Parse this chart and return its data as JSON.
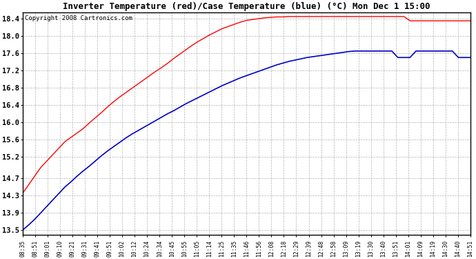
{
  "title": "Inverter Temperature (red)/Case Temperature (blue) (°C) Mon Dec 1 15:00",
  "copyright": "Copyright 2008 Cartronics.com",
  "background_color": "#ffffff",
  "plot_bg_color": "#ffffff",
  "grid_color": "#aaaaaa",
  "yticks": [
    13.5,
    13.9,
    14.3,
    14.7,
    15.2,
    15.6,
    16.0,
    16.4,
    16.8,
    17.2,
    17.6,
    18.0,
    18.4
  ],
  "ylim": [
    13.4,
    18.55
  ],
  "red_color": "#ff0000",
  "blue_color": "#0000cc",
  "xtick_labels": [
    "08:35",
    "08:51",
    "09:01",
    "09:10",
    "09:21",
    "09:31",
    "09:41",
    "09:51",
    "10:02",
    "10:12",
    "10:24",
    "10:34",
    "10:45",
    "10:55",
    "11:05",
    "11:14",
    "11:25",
    "11:35",
    "11:46",
    "11:56",
    "12:08",
    "12:18",
    "12:29",
    "12:39",
    "12:48",
    "12:58",
    "13:09",
    "13:19",
    "13:30",
    "13:40",
    "13:51",
    "14:01",
    "14:09",
    "14:19",
    "14:30",
    "14:40",
    "14:51"
  ],
  "red_values": [
    14.35,
    14.55,
    14.75,
    14.95,
    15.1,
    15.25,
    15.4,
    15.55,
    15.65,
    15.75,
    15.85,
    15.98,
    16.1,
    16.22,
    16.35,
    16.47,
    16.58,
    16.68,
    16.78,
    16.88,
    16.98,
    17.08,
    17.18,
    17.27,
    17.37,
    17.48,
    17.58,
    17.68,
    17.78,
    17.87,
    17.95,
    18.03,
    18.1,
    18.17,
    18.22,
    18.27,
    18.32,
    18.36,
    18.38,
    18.4,
    18.42,
    18.43,
    18.44,
    18.44,
    18.45,
    18.45,
    18.45,
    18.45,
    18.45,
    18.45,
    18.45,
    18.45,
    18.45,
    18.45,
    18.45,
    18.45,
    18.45,
    18.45,
    18.45,
    18.45,
    18.45,
    18.45,
    18.45,
    18.45,
    18.35,
    18.35,
    18.35,
    18.35,
    18.35,
    18.35,
    18.35,
    18.35,
    18.35,
    18.35,
    18.35
  ],
  "blue_values": [
    13.5,
    13.62,
    13.75,
    13.9,
    14.05,
    14.2,
    14.35,
    14.5,
    14.62,
    14.75,
    14.87,
    14.98,
    15.1,
    15.22,
    15.33,
    15.43,
    15.53,
    15.63,
    15.72,
    15.8,
    15.88,
    15.96,
    16.04,
    16.12,
    16.2,
    16.27,
    16.35,
    16.43,
    16.5,
    16.57,
    16.64,
    16.71,
    16.78,
    16.85,
    16.91,
    16.97,
    17.03,
    17.08,
    17.13,
    17.18,
    17.23,
    17.28,
    17.33,
    17.37,
    17.41,
    17.44,
    17.47,
    17.5,
    17.52,
    17.54,
    17.56,
    17.58,
    17.6,
    17.62,
    17.64,
    17.65,
    17.65,
    17.65,
    17.65,
    17.65,
    17.65,
    17.65,
    17.5,
    17.5,
    17.5,
    17.65,
    17.65,
    17.65,
    17.65,
    17.65,
    17.65,
    17.65,
    17.5,
    17.5,
    17.5
  ],
  "n_xtick_labels": 37,
  "total_points": 75
}
